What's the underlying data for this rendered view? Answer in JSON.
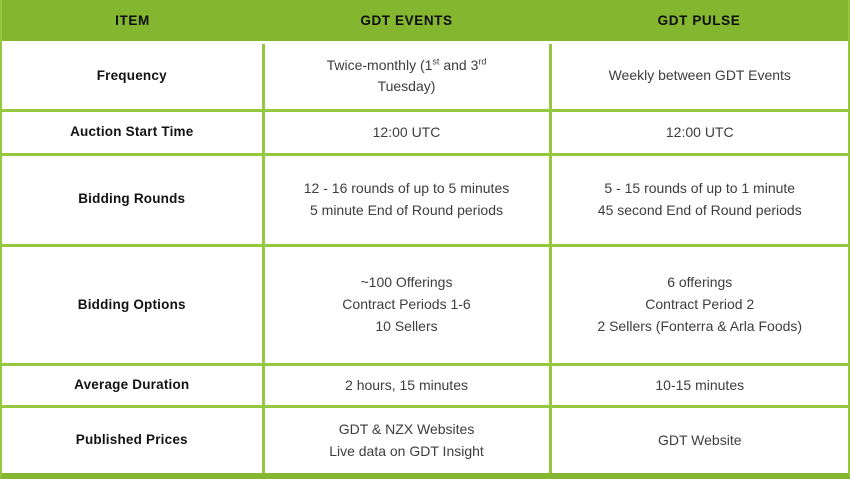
{
  "colors": {
    "header_green": "#84B62F",
    "border_green": "#95C83E",
    "body_text": "#3D3D3C",
    "bold_text": "#121212"
  },
  "table": {
    "headers": {
      "item": "ITEM",
      "events": "GDT EVENTS",
      "pulse": "GDT PULSE"
    },
    "rows": [
      {
        "item": "Frequency",
        "events": {
          "pre": "Twice-monthly (1",
          "sup1": "st",
          "mid": " and 3",
          "sup2": "rd",
          "line2": "Tuesday)"
        },
        "pulse": "Weekly between GDT Events"
      },
      {
        "item": "Auction Start Time",
        "events": "12:00 UTC",
        "pulse": "12:00 UTC"
      },
      {
        "item": "Bidding Rounds",
        "events": [
          "12 - 16 rounds of up to 5 minutes",
          "5 minute End of Round periods"
        ],
        "pulse": [
          "5 - 15 rounds of up to 1 minute",
          "45 second End of Round periods"
        ]
      },
      {
        "item": "Bidding Options",
        "events": [
          "~100 Offerings",
          "Contract Periods 1-6",
          "10 Sellers"
        ],
        "pulse": [
          "6 offerings",
          "Contract Period 2",
          "2 Sellers (Fonterra & Arla Foods)"
        ]
      },
      {
        "item": "Average Duration",
        "events": "2 hours, 15 minutes",
        "pulse": "10-15 minutes"
      },
      {
        "item": "Published Prices",
        "events": [
          "GDT & NZX Websites",
          "Live data on GDT Insight"
        ],
        "pulse": "GDT Website"
      }
    ]
  }
}
